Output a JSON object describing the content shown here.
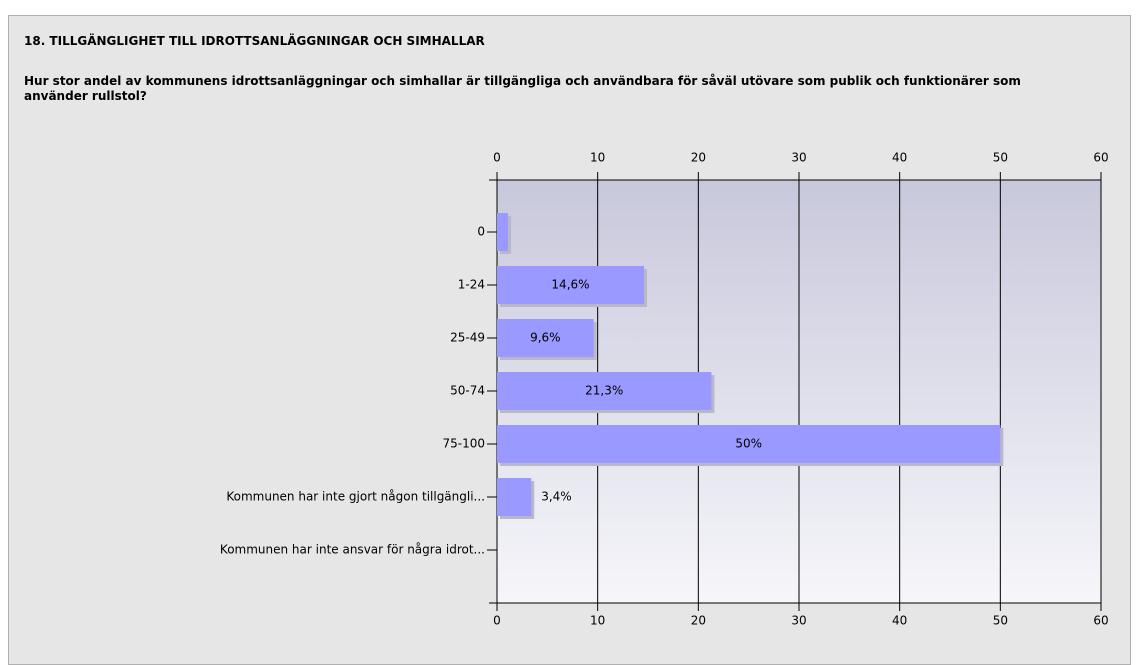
{
  "chart_data": {
    "type": "bar",
    "orientation": "horizontal",
    "title": "18. TILLGÄNGLIGHET TILL IDROTTSANLÄGGNINGAR OCH SIMHALLAR",
    "subtitle": "Hur stor andel av kommunens idrottsanläggningar och simhallar är tillgängliga och användbara för såväl utövare som publik och funktionärer som använder rullstol?",
    "categories": [
      "0",
      "1-24",
      "25-49",
      "50-74",
      "75-100",
      "Kommunen har inte gjort någon tillgängli...",
      "Kommunen har inte ansvar för några idrot..."
    ],
    "values": [
      1.1,
      14.6,
      9.6,
      21.3,
      50,
      3.4,
      0
    ],
    "value_labels": [
      null,
      "14,6%",
      "9,6%",
      "21,3%",
      "50%",
      "3,4%",
      null
    ],
    "color": "#9999ff",
    "xlim": [
      0,
      60
    ],
    "xticks": [
      0,
      10,
      20,
      30,
      40,
      50,
      60
    ],
    "grid": true
  }
}
